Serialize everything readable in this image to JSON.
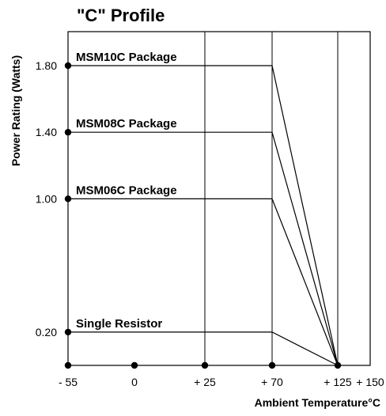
{
  "chart_data": {
    "type": "line",
    "title": "\"C\" Profile",
    "xlabel": "Ambient Temperature°C",
    "ylabel": "Power Rating (Watts)",
    "x_tick_values": [
      -55,
      0,
      25,
      70,
      125,
      150
    ],
    "x_tick_labels": [
      "- 55",
      "0",
      "+ 25",
      "+ 70",
      "+ 125",
      "+ 150"
    ],
    "y_tick_values": [
      1.8,
      1.4,
      1.0,
      0.2
    ],
    "y_tick_labels": [
      "1.80",
      "1.40",
      "1.00",
      "0.20"
    ],
    "x_gridlines": [
      25,
      70,
      125
    ],
    "ylim": [
      0,
      2.0
    ],
    "series": [
      {
        "name": "MSM10C Package",
        "x": [
          -55,
          70,
          125
        ],
        "y": [
          1.8,
          1.8,
          0
        ]
      },
      {
        "name": "MSM08C Package",
        "x": [
          -55,
          70,
          125
        ],
        "y": [
          1.4,
          1.4,
          0
        ]
      },
      {
        "name": "MSM06C Package",
        "x": [
          -55,
          70,
          125
        ],
        "y": [
          1.0,
          1.0,
          0
        ]
      },
      {
        "name": "Single Resistor",
        "x": [
          -55,
          70,
          125
        ],
        "y": [
          0.2,
          0.2,
          0
        ]
      }
    ],
    "markers": [
      {
        "x": -55,
        "y": 1.8
      },
      {
        "x": -55,
        "y": 1.4
      },
      {
        "x": -55,
        "y": 1.0
      },
      {
        "x": -55,
        "y": 0.2
      },
      {
        "x": -55,
        "y": 0
      },
      {
        "x": 0,
        "y": 0
      },
      {
        "x": 25,
        "y": 0
      },
      {
        "x": 70,
        "y": 0
      },
      {
        "x": 125,
        "y": 0
      }
    ],
    "grid": true,
    "line_color": "#000000"
  }
}
